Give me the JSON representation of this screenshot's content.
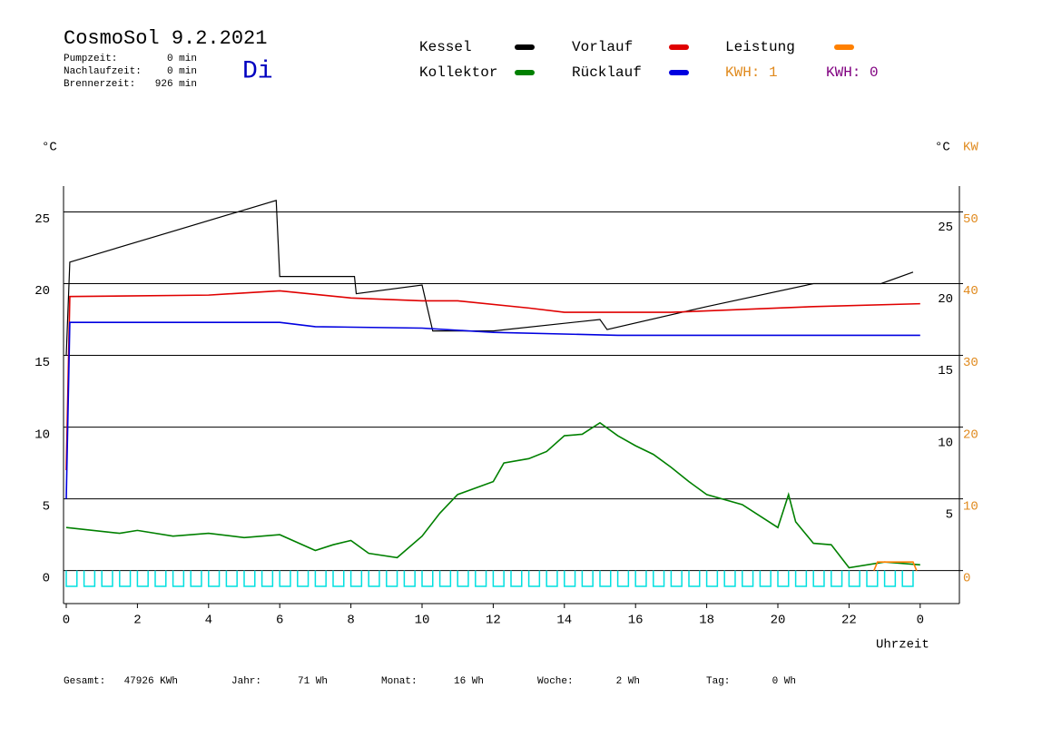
{
  "chart_data": {
    "type": "line",
    "title": "CosmoSol 9.2.2021",
    "day": "Di",
    "stats": [
      {
        "label": "Pumpzeit:",
        "value": "0 min"
      },
      {
        "label": "Nachlaufzeit:",
        "value": "0 min"
      },
      {
        "label": "Brennerzeit:",
        "value": "926 min"
      }
    ],
    "kwh_labels": [
      {
        "text": "KWH: 1",
        "color": "#e08a1e"
      },
      {
        "text": "KWH: 0",
        "color": "#800080"
      }
    ],
    "y_unit_left": "°C",
    "y_unit_right": "°C",
    "y2_unit": "KW",
    "x_label": "Uhrzeit",
    "xlim": [
      0,
      25.1
    ],
    "xticks": [
      0,
      2,
      4,
      6,
      8,
      10,
      12,
      14,
      16,
      18,
      20,
      22,
      {
        "value": 24,
        "label": "0"
      }
    ],
    "ylim": [
      -2.3,
      26.8
    ],
    "yticks": [
      0,
      5,
      10,
      15,
      20,
      25
    ],
    "y2lim": [
      -4.6,
      53.6
    ],
    "y2ticks": [
      0,
      10,
      20,
      30,
      40,
      50
    ],
    "grid": true,
    "series": [
      {
        "name": "Kessel",
        "color": "#000000",
        "x": [
          0,
          0.1,
          5.9,
          6.0,
          8.1,
          8.15,
          10.0,
          10.3,
          12.0,
          15.0,
          15.2,
          18.0,
          21.0,
          22.9,
          23.8
        ],
        "values": [
          15,
          21.5,
          25.8,
          20.5,
          20.5,
          19.3,
          19.9,
          16.7,
          16.7,
          17.5,
          16.8,
          18.4,
          20.0,
          20.0,
          20.8
        ]
      },
      {
        "name": "Kollektor",
        "color": "#008000",
        "x": [
          0,
          1.5,
          2,
          3,
          4,
          5,
          6,
          7,
          7.5,
          8,
          8.5,
          9.3,
          10,
          10.5,
          11,
          12,
          12.3,
          13,
          13.5,
          14,
          14.5,
          15,
          15.5,
          16,
          16.5,
          17,
          17.5,
          18,
          19,
          20,
          20.3,
          20.5,
          21,
          21.5,
          22,
          23,
          24
        ],
        "values": [
          3.0,
          2.6,
          2.8,
          2.4,
          2.6,
          2.3,
          2.5,
          1.4,
          1.8,
          2.1,
          1.2,
          0.9,
          2.4,
          4.0,
          5.3,
          6.2,
          7.5,
          7.8,
          8.3,
          9.4,
          9.5,
          10.3,
          9.4,
          8.7,
          8.1,
          7.2,
          6.2,
          5.3,
          4.6,
          3.0,
          5.3,
          3.4,
          1.9,
          1.8,
          0.2,
          0.6,
          0.4
        ]
      },
      {
        "name": "Vorlauf",
        "color": "#e00000",
        "x": [
          0,
          0.1,
          4,
          6,
          8,
          10,
          11,
          13,
          14,
          17,
          19,
          21,
          24
        ],
        "values": [
          7,
          19.1,
          19.2,
          19.5,
          19.0,
          18.8,
          18.8,
          18.3,
          18.0,
          18.0,
          18.2,
          18.4,
          18.6
        ]
      },
      {
        "name": "Rücklauf",
        "color": "#0000e0",
        "x": [
          0,
          0.1,
          6,
          7,
          10,
          12,
          15.5,
          24
        ],
        "values": [
          5,
          17.3,
          17.3,
          17.0,
          16.9,
          16.6,
          16.4,
          16.4
        ]
      },
      {
        "name": "Leistung",
        "color": "#ff8000",
        "axis": "y2",
        "x": [
          22.7,
          22.8,
          23.8,
          23.9
        ],
        "values": [
          0,
          1.2,
          1.2,
          0
        ]
      },
      {
        "color": "#00e0e0",
        "kind": "pulses",
        "x": [
          0,
          0.5,
          1,
          1.5,
          2,
          2.5,
          3,
          3.5,
          4,
          4.5,
          5,
          5.5,
          6,
          6.5,
          7,
          7.5,
          8,
          8.5,
          9,
          9.5,
          10,
          10.5,
          11,
          11.5,
          12,
          12.5,
          13,
          13.5,
          14,
          14.5,
          15,
          15.5,
          16,
          16.5,
          17,
          17.5,
          18,
          18.5,
          19,
          19.5,
          20,
          20.5,
          21,
          21.5,
          22,
          22.5,
          23,
          23.5
        ],
        "x_end": [
          0.3,
          0.8,
          1.3,
          1.8,
          2.3,
          2.8,
          3.3,
          3.8,
          4.3,
          4.8,
          5.3,
          5.8,
          6.3,
          6.8,
          7.3,
          7.8,
          8.3,
          8.8,
          9.3,
          9.8,
          10.3,
          10.8,
          11.3,
          11.8,
          12.3,
          12.8,
          13.3,
          13.8,
          14.3,
          14.8,
          15.3,
          15.8,
          16.3,
          16.8,
          17.3,
          17.8,
          18.3,
          18.8,
          19.3,
          19.8,
          20.3,
          20.8,
          21.3,
          21.8,
          22.3,
          22.8,
          23.3,
          23.8
        ],
        "values": [
          -1.1,
          -1.1,
          -1.1,
          -1.1,
          -1.1,
          -1.1,
          -1.1,
          -1.1,
          -1.1,
          -1.1,
          -1.1,
          -1.1,
          -1.1,
          -1.1,
          -1.1,
          -1.1,
          -1.1,
          -1.1,
          -1.1,
          -1.1,
          -1.1,
          -1.1,
          -1.1,
          -1.1,
          -1.1,
          -1.1,
          -1.1,
          -1.1,
          -1.1,
          -1.1,
          -1.1,
          -1.1,
          -1.1,
          -1.1,
          -1.1,
          -1.1,
          -1.1,
          -1.1,
          -1.1,
          -1.1,
          -1.1,
          -1.1,
          -1.1,
          -1.1,
          -1.1,
          -1.1,
          -1.1,
          -1.1
        ]
      }
    ],
    "totals": [
      {
        "label": "Gesamt:",
        "value": "47926 KWh"
      },
      {
        "label": "Jahr:",
        "value": "71 Wh"
      },
      {
        "label": "Monat:",
        "value": "16 Wh"
      },
      {
        "label": "Woche:",
        "value": "2 Wh"
      },
      {
        "label": "Tag:",
        "value": "0 Wh"
      }
    ]
  }
}
